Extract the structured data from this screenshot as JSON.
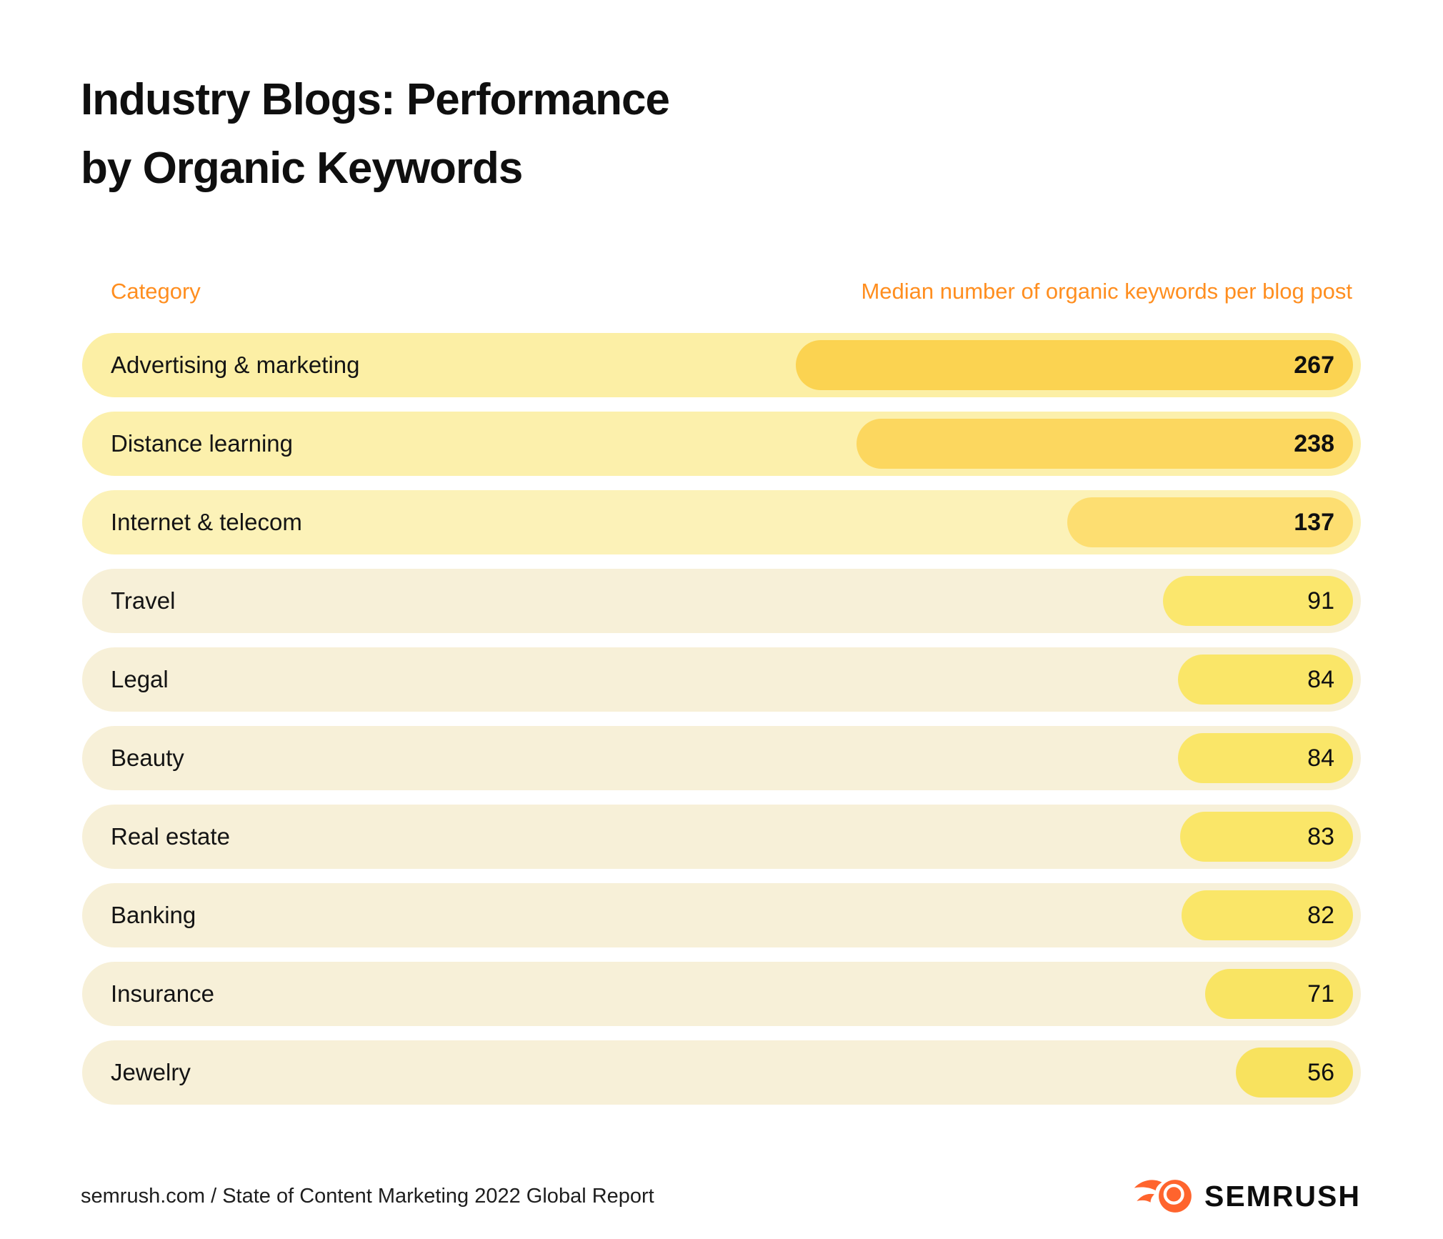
{
  "title": {
    "line1": "Industry Blogs: Performance",
    "line2": "by Organic Keywords"
  },
  "columns": {
    "category_header": "Category",
    "value_header": "Median number of organic keywords per blog post"
  },
  "footer": {
    "source": "semrush.com / State of Content Marketing 2022 Global Report",
    "brand": "SEMRUSH"
  },
  "colors": {
    "background": "#FFFFFF",
    "header_accent": "#FF8E1F",
    "title_text": "#0F0F0F",
    "label_text": "#141414",
    "value_text": "#101010",
    "footer_text": "#1E1E1E",
    "logo_orange": "#FF642D"
  },
  "chart_data": {
    "type": "bar",
    "orientation": "horizontal",
    "bars_aligned": "right",
    "title": "Industry Blogs: Performance by Organic Keywords",
    "xlabel": "Median number of organic keywords per blog post",
    "ylabel": "Category",
    "max_value": 267,
    "categories": [
      "Advertising & marketing",
      "Distance learning",
      "Internet & telecom",
      "Travel",
      "Legal",
      "Beauty",
      "Real estate",
      "Banking",
      "Insurance",
      "Jewelry"
    ],
    "values": [
      267,
      238,
      137,
      91,
      84,
      84,
      83,
      82,
      71,
      56
    ],
    "rows": [
      {
        "label": "Advertising & marketing",
        "value": 267,
        "value_bold": true,
        "bar_color": "#FBD351",
        "track_color": "#FCEFA5"
      },
      {
        "label": "Distance learning",
        "value": 238,
        "value_bold": true,
        "bar_color": "#FCD75F",
        "track_color": "#FCF0AC"
      },
      {
        "label": "Internet & telecom",
        "value": 137,
        "value_bold": true,
        "bar_color": "#FDDE71",
        "track_color": "#FCF2B8"
      },
      {
        "label": "Travel",
        "value": 91,
        "value_bold": false,
        "bar_color": "#FBE76D",
        "track_color": "#F7F0D8"
      },
      {
        "label": "Legal",
        "value": 84,
        "value_bold": false,
        "bar_color": "#FAE668",
        "track_color": "#F7F0D8"
      },
      {
        "label": "Beauty",
        "value": 84,
        "value_bold": false,
        "bar_color": "#FAE668",
        "track_color": "#F7F0D8"
      },
      {
        "label": "Real estate",
        "value": 83,
        "value_bold": false,
        "bar_color": "#FAE668",
        "track_color": "#F7F0D8"
      },
      {
        "label": "Banking",
        "value": 82,
        "value_bold": false,
        "bar_color": "#FAE668",
        "track_color": "#F7F0D8"
      },
      {
        "label": "Insurance",
        "value": 71,
        "value_bold": false,
        "bar_color": "#F9E463",
        "track_color": "#F7F0D8"
      },
      {
        "label": "Jewelry",
        "value": 56,
        "value_bold": false,
        "bar_color": "#F8E25E",
        "track_color": "#F7F0D8"
      }
    ]
  }
}
